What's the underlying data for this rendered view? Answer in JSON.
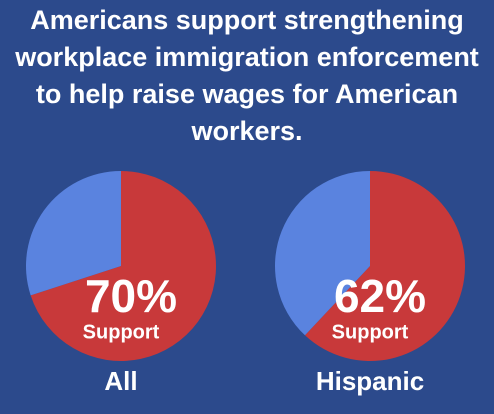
{
  "title": "Americans support strengthening workplace immigration enforcement to help raise wages for American workers.",
  "chart_data": [
    {
      "type": "pie",
      "title": "All",
      "categories": [
        "Support",
        null
      ],
      "values": [
        70,
        30
      ],
      "value_labels": [
        "70%",
        null
      ],
      "colors": [
        "#c8393a",
        "#5a83df"
      ]
    },
    {
      "type": "pie",
      "title": "Hispanic",
      "categories": [
        "Support",
        null
      ],
      "values": [
        62,
        38
      ],
      "value_labels": [
        "62%",
        null
      ],
      "colors": [
        "#c8393a",
        "#5a83df"
      ]
    }
  ]
}
